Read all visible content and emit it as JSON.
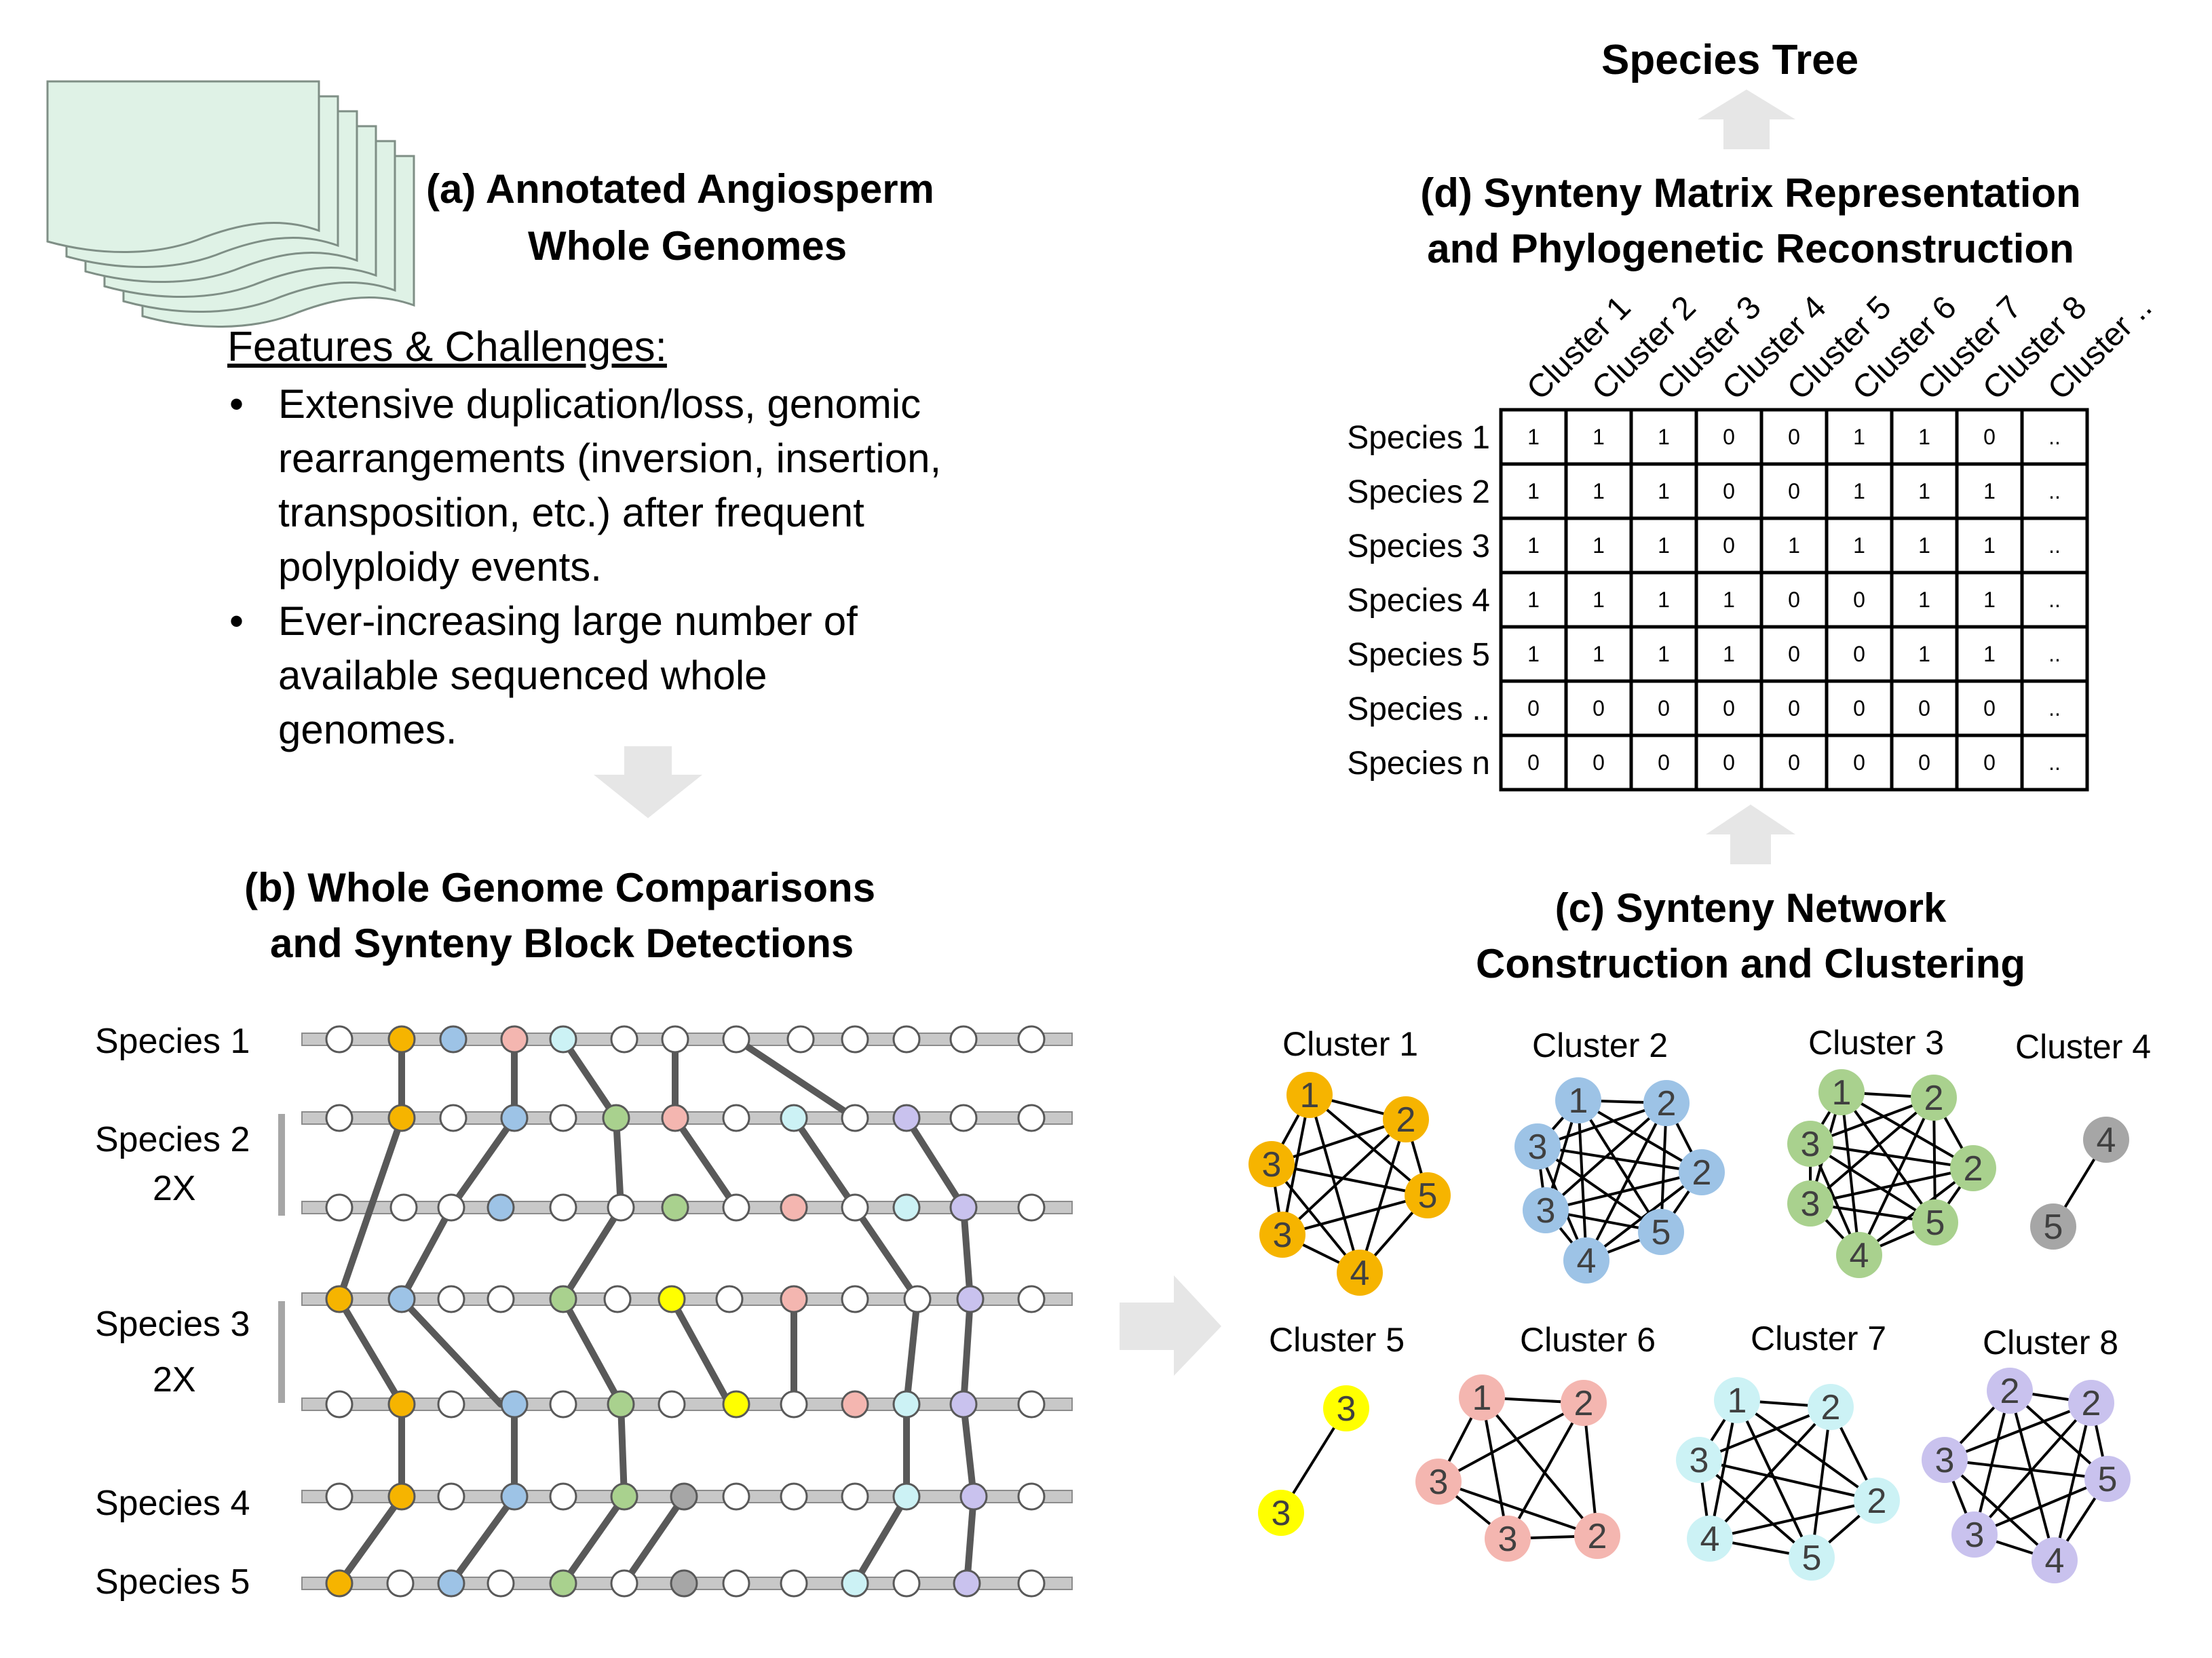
{
  "panel_a": {
    "title_line1": "(a)  Annotated Angiosperm",
    "title_line2": "Whole Genomes",
    "features_heading": "Features & Challenges:",
    "bullets": [
      [
        "Extensive duplication/loss, genomic",
        "rearrangements (inversion, insertion,",
        "transposition, etc.) after frequent",
        "polyploidy events."
      ],
      [
        "Ever-increasing large number of",
        "available sequenced whole",
        "genomes."
      ]
    ],
    "bullet_symbol": "•"
  },
  "panel_b": {
    "title_line1": "(b)  Whole Genome Comparisons",
    "title_line2": "and Synteny Block Detections",
    "species_labels": [
      "Species 1",
      "Species 2",
      "2X",
      "Species 3",
      "2X",
      "Species 4",
      "Species 5"
    ]
  },
  "panel_c": {
    "title_line1": "(c)  Synteny Network",
    "title_line2": "Construction and Clustering",
    "clusters": [
      {
        "label": "Cluster 1",
        "color": "#f6b400",
        "nodes": [
          "1",
          "2",
          "5",
          "4",
          "3",
          "3"
        ]
      },
      {
        "label": "Cluster 2",
        "color": "#9dc3e6",
        "nodes": [
          "1",
          "2",
          "2",
          "5",
          "4",
          "3",
          "3"
        ]
      },
      {
        "label": "Cluster 3",
        "color": "#a9d18e",
        "nodes": [
          "1",
          "2",
          "2",
          "5",
          "4",
          "3",
          "3"
        ]
      },
      {
        "label": "Cluster 4",
        "color": "#a6a6a6",
        "nodes": [
          "4",
          "5"
        ]
      },
      {
        "label": "Cluster 5",
        "color": "#ffff00",
        "nodes": [
          "3",
          "3"
        ]
      },
      {
        "label": "Cluster 6",
        "color": "#f4b6b0",
        "nodes": [
          "1",
          "2",
          "2",
          "3",
          "3"
        ]
      },
      {
        "label": "Cluster 7",
        "color": "#ccf2f5",
        "nodes": [
          "1",
          "2",
          "2",
          "5",
          "4",
          "3"
        ]
      },
      {
        "label": "Cluster 8",
        "color": "#c9c2ee",
        "nodes": [
          "2",
          "2",
          "5",
          "4",
          "3",
          "3"
        ]
      }
    ]
  },
  "panel_d": {
    "top_label": "Species Tree",
    "title_line1": "(d)  Synteny Matrix Representation",
    "title_line2": "and Phylogenetic Reconstruction",
    "columns": [
      "Cluster 1",
      "Cluster 2",
      "Cluster 3",
      "Cluster 4",
      "Cluster 5",
      "Cluster 6",
      "Cluster 7",
      "Cluster 8",
      "Cluster .."
    ],
    "rows": [
      {
        "species": "Species 1",
        "values": [
          "1",
          "1",
          "1",
          "0",
          "0",
          "1",
          "1",
          "0",
          ".."
        ]
      },
      {
        "species": "Species 2",
        "values": [
          "1",
          "1",
          "1",
          "0",
          "0",
          "1",
          "1",
          "1",
          ".."
        ]
      },
      {
        "species": "Species 3",
        "values": [
          "1",
          "1",
          "1",
          "0",
          "1",
          "1",
          "1",
          "1",
          ".."
        ]
      },
      {
        "species": "Species 4",
        "values": [
          "1",
          "1",
          "1",
          "1",
          "0",
          "0",
          "1",
          "1",
          ".."
        ]
      },
      {
        "species": "Species 5",
        "values": [
          "1",
          "1",
          "1",
          "1",
          "0",
          "0",
          "1",
          "1",
          ".."
        ]
      },
      {
        "species": "Species ..",
        "values": [
          "0",
          "0",
          "0",
          "0",
          "0",
          "0",
          "0",
          "0",
          ".."
        ]
      },
      {
        "species": "Species n",
        "values": [
          "0",
          "0",
          "0",
          "0",
          "0",
          "0",
          "0",
          "0",
          ".."
        ]
      }
    ]
  },
  "colors": {
    "document_fill": "#dff2e6",
    "document_stroke": "#7f8f86",
    "arrow_gray": "#e6e6e6",
    "track_gray": "#c8c8c8",
    "link_gray": "#595959"
  }
}
